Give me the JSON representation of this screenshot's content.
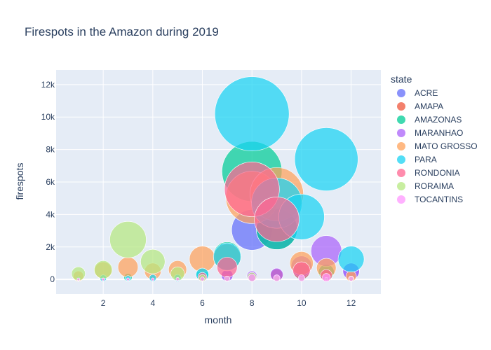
{
  "chart_data": {
    "type": "scatter",
    "title": "Firespots in the Amazon during 2019",
    "xlabel": "month",
    "ylabel": "firespots",
    "xlim": [
      0.1,
      13.2
    ],
    "ylim": [
      -900,
      12900
    ],
    "xticks": [
      2,
      4,
      6,
      8,
      10,
      12
    ],
    "xtick_labels": [
      "2",
      "4",
      "6",
      "8",
      "10",
      "12"
    ],
    "yticks": [
      0,
      2000,
      4000,
      6000,
      8000,
      10000,
      12000
    ],
    "ytick_labels": [
      "0",
      "2k",
      "4k",
      "6k",
      "8k",
      "10k",
      "12k"
    ],
    "grid": true,
    "legend_title": "state",
    "legend_position": "right",
    "marker_size_encodes": "firespots",
    "series": [
      {
        "name": "ACRE",
        "color": "#636efa",
        "points": [
          [
            1,
            5
          ],
          [
            2,
            10
          ],
          [
            3,
            15
          ],
          [
            4,
            10
          ],
          [
            5,
            15
          ],
          [
            6,
            35
          ],
          [
            7,
            225
          ],
          [
            8,
            3050
          ],
          [
            9,
            3100
          ],
          [
            10,
            550
          ],
          [
            11,
            250
          ],
          [
            12,
            500
          ]
        ]
      },
      {
        "name": "AMAPA",
        "color": "#ef553b",
        "points": [
          [
            1,
            5
          ],
          [
            2,
            5
          ],
          [
            3,
            10
          ],
          [
            4,
            10
          ],
          [
            5,
            10
          ],
          [
            6,
            130
          ],
          [
            7,
            95
          ],
          [
            8,
            140
          ],
          [
            9,
            270
          ],
          [
            10,
            500
          ],
          [
            11,
            300
          ],
          [
            12,
            120
          ]
        ]
      },
      {
        "name": "AMAZONAS",
        "color": "#00cc96",
        "points": [
          [
            1,
            60
          ],
          [
            2,
            60
          ],
          [
            3,
            120
          ],
          [
            4,
            40
          ],
          [
            5,
            70
          ],
          [
            6,
            280
          ],
          [
            7,
            1450
          ],
          [
            8,
            6650
          ],
          [
            9,
            3100
          ],
          [
            10,
            450
          ],
          [
            11,
            450
          ],
          [
            12,
            80
          ]
        ]
      },
      {
        "name": "MARANHAO",
        "color": "#ab63fa",
        "points": [
          [
            1,
            30
          ],
          [
            2,
            25
          ],
          [
            3,
            35
          ],
          [
            4,
            40
          ],
          [
            5,
            90
          ],
          [
            6,
            80
          ],
          [
            7,
            250
          ],
          [
            8,
            200
          ],
          [
            9,
            300
          ],
          [
            10,
            800
          ],
          [
            11,
            1750
          ],
          [
            12,
            500
          ]
        ]
      },
      {
        "name": "MATO GROSSO",
        "color": "#ffa15a",
        "points": [
          [
            1,
            200
          ],
          [
            2,
            550
          ],
          [
            3,
            750
          ],
          [
            4,
            500
          ],
          [
            5,
            600
          ],
          [
            6,
            1250
          ],
          [
            7,
            1350
          ],
          [
            8,
            5050
          ],
          [
            9,
            5250
          ],
          [
            10,
            1000
          ],
          [
            11,
            700
          ],
          [
            12,
            200
          ]
        ]
      },
      {
        "name": "PARA",
        "color": "#19d3f3",
        "points": [
          [
            1,
            30
          ],
          [
            2,
            80
          ],
          [
            3,
            60
          ],
          [
            4,
            90
          ],
          [
            5,
            90
          ],
          [
            6,
            300
          ],
          [
            7,
            1400
          ],
          [
            8,
            10200
          ],
          [
            9,
            4700
          ],
          [
            10,
            3850
          ],
          [
            11,
            7400
          ],
          [
            12,
            1250
          ]
        ]
      },
      {
        "name": "RONDONIA",
        "color": "#ff6692",
        "points": [
          [
            1,
            5
          ],
          [
            2,
            5
          ],
          [
            3,
            10
          ],
          [
            4,
            5
          ],
          [
            5,
            10
          ],
          [
            6,
            150
          ],
          [
            7,
            750
          ],
          [
            8,
            5550
          ],
          [
            9,
            3700
          ],
          [
            10,
            550
          ],
          [
            11,
            250
          ],
          [
            12,
            50
          ]
        ]
      },
      {
        "name": "RORAIMA",
        "color": "#b6e880",
        "points": [
          [
            1,
            350
          ],
          [
            2,
            600
          ],
          [
            3,
            2450
          ],
          [
            4,
            1100
          ],
          [
            5,
            350
          ],
          [
            6,
            90
          ],
          [
            7,
            50
          ],
          [
            8,
            150
          ],
          [
            9,
            60
          ],
          [
            10,
            50
          ],
          [
            11,
            20
          ],
          [
            12,
            40
          ]
        ]
      },
      {
        "name": "TOCANTINS",
        "color": "#ff97ff",
        "points": [
          [
            1,
            5
          ],
          [
            2,
            5
          ],
          [
            3,
            5
          ],
          [
            4,
            5
          ],
          [
            5,
            20
          ],
          [
            6,
            30
          ],
          [
            7,
            50
          ],
          [
            8,
            100
          ],
          [
            9,
            80
          ],
          [
            10,
            80
          ],
          [
            11,
            120
          ],
          [
            12,
            40
          ]
        ]
      }
    ]
  }
}
